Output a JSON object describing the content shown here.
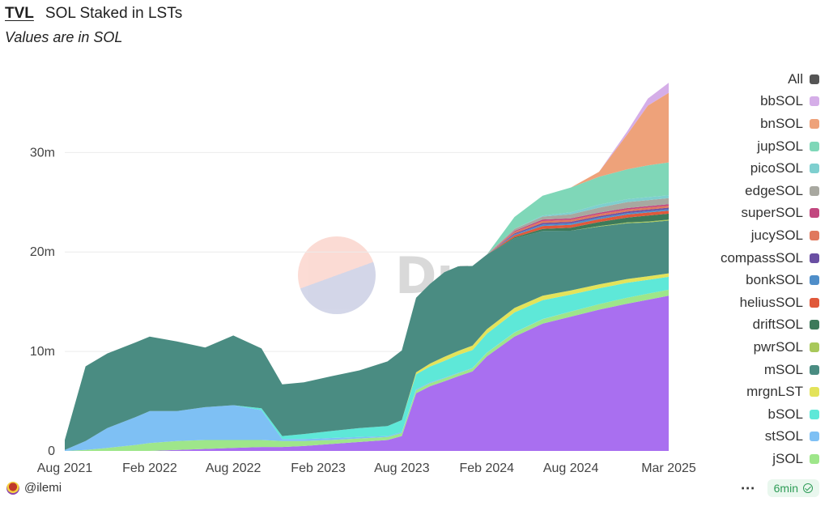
{
  "header": {
    "tab_label": "TVL",
    "title": "SOL Staked in LSTs",
    "subtitle": "Values are in SOL"
  },
  "footer": {
    "author": "@ilemi",
    "menu_icon": "ellipsis-icon",
    "refresh_label": "6min",
    "refresh_icon": "check-circle-icon"
  },
  "watermark": {
    "text": "Dune"
  },
  "chart_data": {
    "type": "area",
    "stacked": true,
    "title": "SOL Staked in LSTs",
    "subtitle": "Values are in SOL",
    "xlabel": "",
    "ylabel": "",
    "x": [
      "2021-08-01",
      "2021-09-15",
      "2021-11-01",
      "2022-01-01",
      "2022-02-01",
      "2022-04-01",
      "2022-06-01",
      "2022-08-01",
      "2022-10-01",
      "2022-11-15",
      "2023-01-01",
      "2023-03-01",
      "2023-05-01",
      "2023-07-01",
      "2023-08-01",
      "2023-09-01",
      "2023-10-01",
      "2023-11-01",
      "2023-12-01",
      "2024-01-01",
      "2024-02-01",
      "2024-04-01",
      "2024-06-01",
      "2024-08-01",
      "2024-10-01",
      "2024-12-01",
      "2025-01-15",
      "2025-03-01"
    ],
    "x_ticks": [
      "Aug 2021",
      "Feb 2022",
      "Aug 2022",
      "Feb 2023",
      "Aug 2023",
      "Feb 2024",
      "Aug 2024",
      "Mar 2025"
    ],
    "y_ticks": [
      "0",
      "10m",
      "20m",
      "30m"
    ],
    "ylim": [
      0,
      38000000
    ],
    "grid": true,
    "legend_position": "right",
    "legend_items": [
      "All",
      "bbSOL",
      "bnSOL",
      "jupSOL",
      "picoSOL",
      "edgeSOL",
      "superSOL",
      "jucySOL",
      "compassSOL",
      "bonkSOL",
      "heliusSOL",
      "driftSOL",
      "pwrSOL",
      "mSOL",
      "mrgnLST",
      "bSOL",
      "stSOL",
      "jSOL"
    ],
    "legend_colors": [
      "#555555",
      "#d5aee8",
      "#eea27a",
      "#7fd7b8",
      "#7ecfcf",
      "#a8a8a0",
      "#c2477f",
      "#e0785e",
      "#6a4fa3",
      "#4f8ec9",
      "#e0583a",
      "#3d7a5a",
      "#a8c85a",
      "#4a8c82",
      "#e3e35a",
      "#5ee8d8",
      "#7ec0f4",
      "#9ee68a"
    ],
    "series": [
      {
        "name": "jSOL",
        "color": "#9ee68a",
        "values": [
          0,
          100000,
          300000,
          600000,
          800000,
          900000,
          900000,
          800000,
          700000,
          600000,
          500000,
          400000,
          350000,
          300000,
          300000,
          300000,
          300000,
          300000,
          300000,
          300000,
          350000,
          400000,
          450000,
          500000,
          550000,
          600000,
          600000,
          600000
        ]
      },
      {
        "name": "stSOL",
        "color": "#7ec0f4",
        "values": [
          100000,
          900000,
          2000000,
          2800000,
          3200000,
          3000000,
          3300000,
          3500000,
          3000000,
          200000,
          200000,
          200000,
          150000,
          100000,
          100000,
          100000,
          80000,
          60000,
          50000,
          40000,
          30000,
          20000,
          10000,
          10000,
          0,
          0,
          0,
          0
        ]
      },
      {
        "name": "bSOL",
        "color": "#5ee8d8",
        "values": [
          0,
          0,
          0,
          0,
          0,
          0,
          0,
          0,
          200000,
          300000,
          500000,
          700000,
          900000,
          1000000,
          1200000,
          1500000,
          1600000,
          1700000,
          1800000,
          1800000,
          1900000,
          2000000,
          1900000,
          1700000,
          1600000,
          1500000,
          1400000,
          1300000
        ]
      },
      {
        "name": "mrgnLST",
        "color": "#e3e35a",
        "values": [
          0,
          0,
          0,
          0,
          0,
          0,
          0,
          0,
          0,
          0,
          0,
          0,
          0,
          0,
          0,
          200000,
          300000,
          400000,
          400000,
          450000,
          450000,
          450000,
          450000,
          420000,
          400000,
          380000,
          360000,
          350000
        ]
      },
      {
        "name": "mSOL",
        "color": "#4a8c82",
        "values": [
          1000000,
          7500000,
          7500000,
          7500000,
          7500000,
          7000000,
          6000000,
          7000000,
          6000000,
          5200000,
          5200000,
          5500000,
          5800000,
          6500000,
          7000000,
          7500000,
          8000000,
          8500000,
          8500000,
          8000000,
          7500000,
          7000000,
          6500000,
          6000000,
          5800000,
          5600000,
          5400000,
          5300000
        ]
      },
      {
        "name": "pwrSOL",
        "color": "#a8c85a",
        "values": [
          0,
          0,
          0,
          0,
          0,
          0,
          0,
          0,
          0,
          0,
          0,
          0,
          0,
          0,
          0,
          0,
          0,
          0,
          0,
          0,
          0,
          0,
          0,
          0,
          50000,
          80000,
          100000,
          100000
        ]
      },
      {
        "name": "driftSOL",
        "color": "#3d7a5a",
        "values": [
          0,
          0,
          0,
          0,
          0,
          0,
          0,
          0,
          0,
          0,
          0,
          0,
          0,
          0,
          0,
          0,
          0,
          0,
          0,
          0,
          0,
          100000,
          200000,
          300000,
          400000,
          500000,
          600000,
          600000
        ]
      },
      {
        "name": "heliusSOL",
        "color": "#e0583a",
        "values": [
          0,
          0,
          0,
          0,
          0,
          0,
          0,
          0,
          0,
          0,
          0,
          0,
          0,
          0,
          0,
          0,
          0,
          0,
          0,
          0,
          0,
          200000,
          300000,
          300000,
          300000,
          300000,
          300000,
          300000
        ]
      },
      {
        "name": "bonkSOL",
        "color": "#4f8ec9",
        "values": [
          0,
          0,
          0,
          0,
          0,
          0,
          0,
          0,
          0,
          0,
          0,
          0,
          0,
          0,
          0,
          0,
          0,
          0,
          0,
          0,
          0,
          100000,
          150000,
          150000,
          150000,
          150000,
          150000,
          150000
        ]
      },
      {
        "name": "compassSOL",
        "color": "#6a4fa3",
        "values": [
          0,
          0,
          0,
          0,
          0,
          0,
          0,
          0,
          0,
          0,
          0,
          0,
          0,
          0,
          0,
          0,
          0,
          0,
          0,
          0,
          0,
          100000,
          150000,
          150000,
          150000,
          150000,
          150000,
          150000
        ]
      },
      {
        "name": "jucySOL",
        "color": "#e0785e",
        "values": [
          0,
          0,
          0,
          0,
          0,
          0,
          0,
          0,
          0,
          0,
          0,
          0,
          0,
          0,
          0,
          0,
          0,
          0,
          0,
          0,
          0,
          150000,
          200000,
          200000,
          200000,
          200000,
          200000,
          200000
        ]
      },
      {
        "name": "superSOL",
        "color": "#c2477f",
        "values": [
          0,
          0,
          0,
          0,
          0,
          0,
          0,
          0,
          0,
          0,
          0,
          0,
          0,
          0,
          0,
          0,
          0,
          0,
          0,
          0,
          0,
          100000,
          150000,
          150000,
          150000,
          150000,
          150000,
          150000
        ]
      },
      {
        "name": "edgeSOL",
        "color": "#a8a8a0",
        "values": [
          0,
          0,
          0,
          0,
          0,
          0,
          0,
          0,
          0,
          0,
          0,
          0,
          0,
          0,
          0,
          0,
          0,
          0,
          0,
          0,
          0,
          200000,
          300000,
          400000,
          500000,
          600000,
          600000,
          600000
        ]
      },
      {
        "name": "picoSOL",
        "color": "#7ecfcf",
        "values": [
          0,
          0,
          0,
          0,
          0,
          0,
          0,
          0,
          0,
          0,
          0,
          0,
          0,
          0,
          0,
          0,
          0,
          0,
          0,
          0,
          0,
          0,
          100000,
          200000,
          300000,
          300000,
          300000,
          300000
        ]
      },
      {
        "name": "jupSOL",
        "color": "#7fd7b8",
        "values": [
          0,
          0,
          0,
          0,
          0,
          0,
          0,
          0,
          0,
          0,
          0,
          0,
          0,
          0,
          0,
          0,
          0,
          0,
          0,
          0,
          0,
          1200000,
          2000000,
          2500000,
          2800000,
          3000000,
          3200000,
          3300000
        ]
      },
      {
        "name": "bnSOL",
        "color": "#eea27a",
        "values": [
          0,
          0,
          0,
          0,
          0,
          0,
          0,
          0,
          0,
          0,
          0,
          0,
          0,
          0,
          0,
          0,
          0,
          0,
          0,
          0,
          0,
          0,
          0,
          0,
          500000,
          3500000,
          6000000,
          7000000
        ]
      },
      {
        "name": "bbSOL",
        "color": "#d5aee8",
        "values": [
          0,
          0,
          0,
          0,
          0,
          0,
          0,
          0,
          0,
          0,
          0,
          0,
          0,
          0,
          0,
          0,
          0,
          0,
          0,
          0,
          0,
          0,
          0,
          0,
          0,
          300000,
          700000,
          1000000
        ]
      }
    ],
    "base_series": {
      "name": "All",
      "color": "#a96ff0",
      "values": [
        0,
        0,
        0,
        0,
        0,
        100000,
        200000,
        300000,
        400000,
        400000,
        500000,
        700000,
        900000,
        1100000,
        1500000,
        5800000,
        6500000,
        7000000,
        7500000,
        8000000,
        9500000,
        11500000,
        12800000,
        13500000,
        14200000,
        14800000,
        15200000,
        15600000
      ]
    }
  }
}
